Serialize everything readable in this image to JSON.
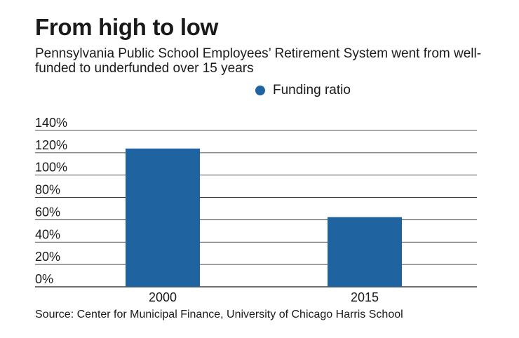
{
  "header": {
    "title": "From high to low",
    "subtitle": "Pennsylvania Public School Employees’ Retirement System went from well-funded to underfunded over 15 years"
  },
  "legend": {
    "label": "Funding ratio"
  },
  "footer": {
    "source": "Source: Center for Municipal Finance, University of Chicago Harris School"
  },
  "colors": {
    "bar": "#1f64a0",
    "grid": "#1a1a1a",
    "text": "#1a1a1a"
  },
  "chart_data": {
    "type": "bar",
    "title": "From high to low",
    "subtitle": "Pennsylvania Public School Employees’ Retirement System went from well-funded to underfunded over 15 years",
    "categories": [
      "2000",
      "2015"
    ],
    "series": [
      {
        "name": "Funding ratio",
        "values": [
          123.8,
          62.4
        ]
      }
    ],
    "xlabel": "",
    "ylabel": "",
    "ylim": [
      0,
      140
    ],
    "yticks": [
      0,
      20,
      40,
      60,
      80,
      100,
      120,
      140
    ],
    "ytick_labels": [
      "0%",
      "20%",
      "40%",
      "60%",
      "80%",
      "100%",
      "120%",
      "140%"
    ],
    "grid": true,
    "legend": "top"
  }
}
